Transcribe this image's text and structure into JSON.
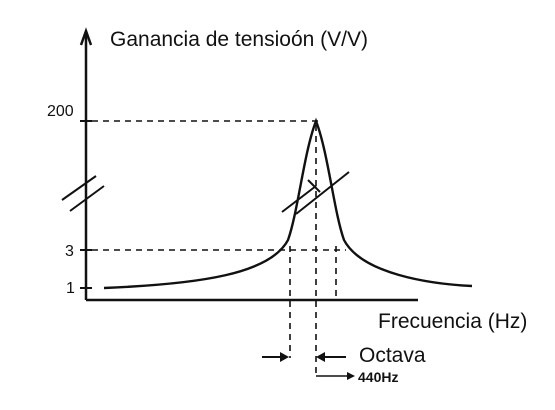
{
  "chart_data": {
    "type": "line",
    "ylabel": "Ganancia  de tensioón (V/V)",
    "xlabel": "Frecuencia (Hz)",
    "y_ticks": [
      {
        "label": "200",
        "value": 200
      },
      {
        "label": "3",
        "value": 3
      },
      {
        "label": "1",
        "value": 1
      }
    ],
    "y_axis_break": true,
    "peak": {
      "gain": 200,
      "frequency_label": "440Hz"
    },
    "bandwidth_label": "Octava",
    "bandwidth_gain": 3,
    "baseline_gain": 1,
    "grid": false,
    "legend": "none",
    "colors": {
      "line": "#111111",
      "guides": "#111111"
    }
  }
}
